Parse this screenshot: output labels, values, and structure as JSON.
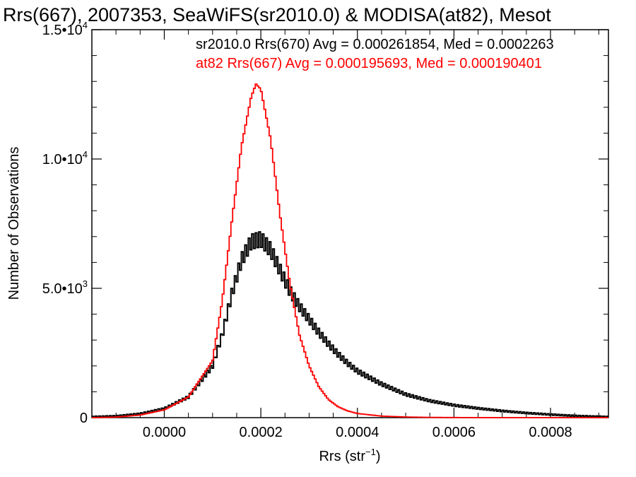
{
  "chart_data": {
    "type": "line",
    "title": "Rrs(667), 2007353, SeaWiFS(sr2010.0) & MODISA(at82), Mesot",
    "xlabel": "Rrs (str",
    "xlabel_sup": "−1",
    "xlabel_end": ")",
    "ylabel": "Number of Observations",
    "xlim": [
      -0.00015,
      0.00092
    ],
    "ylim": [
      0,
      15000
    ],
    "x_ticks": [
      {
        "value": 0.0,
        "label": "0.0000"
      },
      {
        "value": 0.0002,
        "label": "0.0002"
      },
      {
        "value": 0.0004,
        "label": "0.0004"
      },
      {
        "value": 0.0006,
        "label": "0.0006"
      },
      {
        "value": 0.0008,
        "label": "0.0008"
      }
    ],
    "y_ticks": [
      {
        "value": 0,
        "label": "0",
        "sup": ""
      },
      {
        "value": 5000,
        "label": "5.0•10",
        "sup": "3"
      },
      {
        "value": 10000,
        "label": "1.0•10",
        "sup": "4"
      },
      {
        "value": 15000,
        "label": "1.5•10",
        "sup": "4"
      }
    ],
    "grid": false,
    "legend_position": "top-right",
    "series": [
      {
        "name": "sr2010.0 Rrs(670) Avg = 0.000261854, Med = 0.0002263",
        "color": "#000000",
        "style": "histogram-noisy",
        "points": [
          [
            -0.00015,
            30
          ],
          [
            -0.0001,
            60
          ],
          [
            -5e-05,
            150
          ],
          [
            0.0,
            350
          ],
          [
            5e-05,
            800
          ],
          [
            0.0001,
            2000
          ],
          [
            0.00012,
            3200
          ],
          [
            0.00014,
            4800
          ],
          [
            0.00016,
            6100
          ],
          [
            0.00018,
            6800
          ],
          [
            0.0002,
            6900
          ],
          [
            0.00022,
            6500
          ],
          [
            0.00024,
            5700
          ],
          [
            0.00026,
            4900
          ],
          [
            0.00028,
            4300
          ],
          [
            0.0003,
            3800
          ],
          [
            0.00032,
            3300
          ],
          [
            0.00034,
            2850
          ],
          [
            0.00036,
            2450
          ],
          [
            0.00038,
            2100
          ],
          [
            0.0004,
            1800
          ],
          [
            0.00045,
            1300
          ],
          [
            0.0005,
            900
          ],
          [
            0.00055,
            650
          ],
          [
            0.0006,
            480
          ],
          [
            0.00065,
            360
          ],
          [
            0.0007,
            260
          ],
          [
            0.00075,
            180
          ],
          [
            0.0008,
            120
          ],
          [
            0.00085,
            70
          ],
          [
            0.0009,
            40
          ],
          [
            0.00092,
            30
          ]
        ]
      },
      {
        "name": "at82 Rrs(667) Avg = 0.000195693, Med = 0.000190401",
        "color": "#ff0000",
        "style": "histogram-smooth",
        "points": [
          [
            -0.00015,
            0
          ],
          [
            -0.0001,
            20
          ],
          [
            -5e-05,
            100
          ],
          [
            0.0,
            300
          ],
          [
            5e-05,
            800
          ],
          [
            0.0001,
            2200
          ],
          [
            0.00012,
            4500
          ],
          [
            0.00014,
            7600
          ],
          [
            0.00016,
            10500
          ],
          [
            0.00018,
            12400
          ],
          [
            0.00019,
            12900
          ],
          [
            0.0002,
            12700
          ],
          [
            0.00022,
            10800
          ],
          [
            0.00024,
            7800
          ],
          [
            0.00026,
            5200
          ],
          [
            0.00028,
            3200
          ],
          [
            0.0003,
            2000
          ],
          [
            0.00032,
            1200
          ],
          [
            0.00034,
            700
          ],
          [
            0.00036,
            420
          ],
          [
            0.00038,
            260
          ],
          [
            0.0004,
            160
          ],
          [
            0.00045,
            60
          ],
          [
            0.0005,
            25
          ],
          [
            0.00055,
            10
          ],
          [
            0.0006,
            5
          ],
          [
            0.0007,
            0
          ],
          [
            0.00092,
            0
          ]
        ]
      }
    ]
  }
}
